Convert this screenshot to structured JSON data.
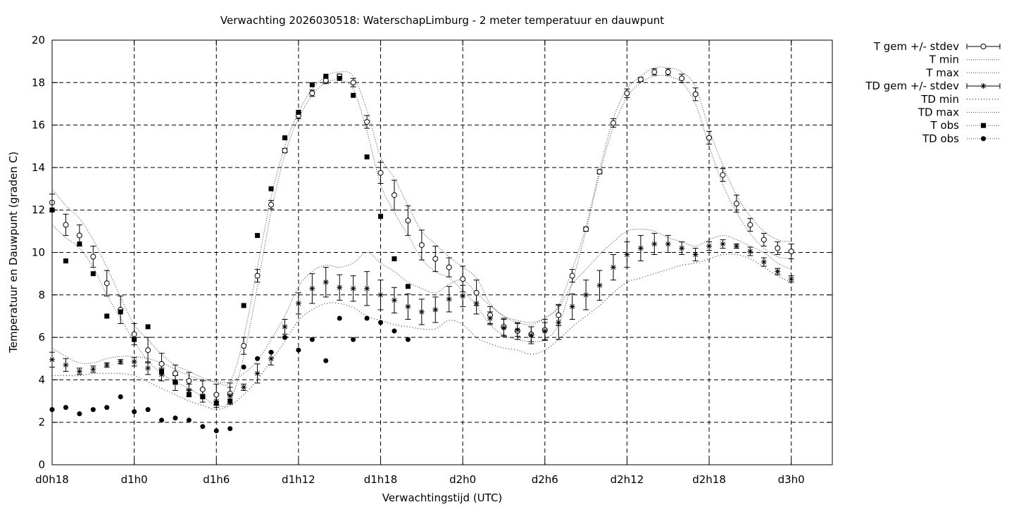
{
  "chart_data": {
    "type": "line",
    "title": "Verwachting 2026030518: WaterschapLimburg - 2 meter temperatuur en dauwpunt",
    "xlabel": "Verwachtingstijd (UTC)",
    "ylabel": "Temperatuur en Dauwpunt (graden C)",
    "xlim": [
      18,
      75
    ],
    "ylim": [
      0,
      20
    ],
    "y_ticks": [
      0,
      2,
      4,
      6,
      8,
      10,
      12,
      14,
      16,
      18,
      20
    ],
    "x_ticks": [
      {
        "x": 18,
        "label": "d0h18"
      },
      {
        "x": 24,
        "label": "d1h0"
      },
      {
        "x": 30,
        "label": "d1h6"
      },
      {
        "x": 36,
        "label": "d1h12"
      },
      {
        "x": 42,
        "label": "d1h18"
      },
      {
        "x": 48,
        "label": "d2h0"
      },
      {
        "x": 54,
        "label": "d2h6"
      },
      {
        "x": 60,
        "label": "d2h12"
      },
      {
        "x": 66,
        "label": "d2h18"
      },
      {
        "x": 72,
        "label": "d3h0"
      }
    ],
    "grid": true,
    "legend_position": "outside-right",
    "legend": [
      {
        "label": "T gem +/- stdev",
        "key": "t_mean"
      },
      {
        "label": "T min",
        "key": "t_min"
      },
      {
        "label": "T max",
        "key": "t_max"
      },
      {
        "label": "TD gem +/- stdev",
        "key": "td_mean"
      },
      {
        "label": "TD min",
        "key": "td_min"
      },
      {
        "label": "TD max",
        "key": "td_max"
      },
      {
        "label": "T obs",
        "key": "t_obs"
      },
      {
        "label": "TD obs",
        "key": "td_obs"
      }
    ],
    "x": [
      18,
      19,
      20,
      21,
      22,
      23,
      24,
      25,
      26,
      27,
      28,
      29,
      30,
      31,
      32,
      33,
      34,
      35,
      36,
      37,
      38,
      39,
      40,
      41,
      42,
      43,
      44,
      45,
      46,
      47,
      48,
      49,
      50,
      51,
      52,
      53,
      54,
      55,
      56,
      57,
      58,
      59,
      60,
      61,
      62,
      63,
      64,
      65,
      66,
      67,
      68,
      69,
      70,
      71,
      72
    ],
    "series": [
      {
        "name": "T gem +/- stdev",
        "key": "t_mean",
        "values": [
          12.35,
          11.3,
          10.8,
          9.8,
          8.55,
          7.3,
          6.15,
          5.4,
          4.75,
          4.3,
          3.95,
          3.55,
          3.3,
          3.35,
          5.6,
          8.9,
          12.25,
          14.8,
          16.45,
          17.5,
          18.1,
          18.3,
          18.0,
          16.15,
          13.75,
          12.7,
          11.5,
          10.35,
          9.7,
          9.3,
          8.75,
          8.1,
          7.05,
          6.5,
          6.3,
          6.15,
          6.35,
          7.05,
          8.9,
          11.1,
          13.8,
          16.1,
          17.5,
          18.15,
          18.5,
          18.5,
          18.2,
          17.45,
          15.4,
          13.65,
          12.3,
          11.3,
          10.6,
          10.2,
          10.05
        ],
        "stdev": [
          0.4,
          0.5,
          0.5,
          0.5,
          0.6,
          0.65,
          0.5,
          0.6,
          0.5,
          0.4,
          0.4,
          0.4,
          0.5,
          0.5,
          0.4,
          0.3,
          0.2,
          0.1,
          0.15,
          0.15,
          0.15,
          0.1,
          0.2,
          0.3,
          0.5,
          0.7,
          0.7,
          0.7,
          0.6,
          0.45,
          0.6,
          0.6,
          0.4,
          0.4,
          0.4,
          0.35,
          0.5,
          0.5,
          0.3,
          0.1,
          0.1,
          0.2,
          0.2,
          0.1,
          0.15,
          0.15,
          0.2,
          0.3,
          0.3,
          0.3,
          0.4,
          0.3,
          0.3,
          0.3,
          0.35
        ]
      },
      {
        "name": "T min",
        "key": "t_min",
        "values": [
          11.3,
          10.7,
          10.2,
          9.3,
          8.0,
          6.9,
          5.8,
          4.9,
          4.3,
          3.9,
          3.6,
          3.2,
          2.8,
          3.0,
          5.1,
          8.4,
          11.9,
          14.6,
          16.3,
          17.4,
          18.0,
          18.1,
          17.7,
          15.7,
          13.2,
          11.9,
          10.8,
          9.7,
          9.1,
          8.8,
          8.2,
          7.5,
          6.6,
          6.1,
          5.9,
          5.8,
          5.9,
          6.6,
          8.6,
          11.0,
          13.7,
          15.9,
          17.3,
          18.0,
          18.3,
          18.3,
          18.0,
          17.0,
          15.0,
          13.2,
          11.9,
          10.9,
          10.2,
          9.8,
          9.7
        ]
      },
      {
        "name": "T max",
        "key": "t_max",
        "values": [
          13.0,
          12.2,
          11.6,
          10.6,
          9.3,
          7.9,
          6.6,
          5.9,
          5.2,
          4.7,
          4.4,
          4.1,
          3.9,
          3.9,
          6.0,
          9.3,
          12.6,
          15.0,
          16.6,
          17.7,
          18.3,
          18.5,
          18.3,
          16.7,
          14.5,
          13.5,
          12.2,
          11.0,
          10.4,
          9.8,
          9.3,
          8.8,
          7.6,
          7.0,
          6.7,
          6.6,
          6.9,
          7.5,
          9.2,
          11.2,
          13.9,
          16.3,
          17.7,
          18.3,
          18.7,
          18.7,
          18.5,
          17.8,
          15.8,
          14.1,
          12.7,
          11.7,
          11.0,
          10.6,
          10.5
        ]
      },
      {
        "name": "TD gem +/- stdev",
        "key": "td_mean",
        "values": [
          4.95,
          4.7,
          4.4,
          4.5,
          4.7,
          4.85,
          4.85,
          4.55,
          4.25,
          3.85,
          3.5,
          3.25,
          3.0,
          3.25,
          3.65,
          4.3,
          5.0,
          6.5,
          7.6,
          8.3,
          8.6,
          8.35,
          8.3,
          8.3,
          8.0,
          7.75,
          7.45,
          7.2,
          7.3,
          7.8,
          7.95,
          7.6,
          6.9,
          6.45,
          6.35,
          6.1,
          6.3,
          6.7,
          7.45,
          8.0,
          8.45,
          9.3,
          9.9,
          10.2,
          10.4,
          10.4,
          10.2,
          9.9,
          10.3,
          10.4,
          10.3,
          10.05,
          9.55,
          9.1,
          8.75
        ]
      },
      {
        "name": "TD min",
        "key": "td_min",
        "values": [
          4.2,
          4.2,
          4.2,
          4.3,
          4.3,
          4.3,
          4.2,
          3.9,
          3.6,
          3.3,
          3.0,
          2.8,
          2.6,
          2.8,
          3.3,
          4.0,
          4.9,
          5.8,
          6.8,
          7.3,
          7.6,
          7.6,
          7.4,
          7.0,
          6.8,
          6.6,
          6.5,
          6.4,
          6.4,
          6.8,
          6.6,
          6.0,
          5.7,
          5.5,
          5.4,
          5.2,
          5.4,
          5.9,
          6.5,
          7.0,
          7.5,
          8.1,
          8.6,
          8.8,
          9.0,
          9.2,
          9.4,
          9.5,
          9.7,
          9.9,
          9.9,
          9.7,
          9.3,
          8.9,
          8.6
        ]
      },
      {
        "name": "TD max",
        "key": "td_max",
        "values": [
          5.5,
          5.1,
          4.8,
          4.8,
          5.0,
          5.1,
          5.1,
          5.0,
          4.8,
          4.5,
          4.2,
          4.0,
          3.9,
          3.9,
          4.3,
          4.9,
          5.9,
          7.0,
          8.4,
          9.1,
          9.4,
          9.3,
          9.5,
          10.0,
          9.5,
          9.1,
          8.6,
          8.3,
          8.1,
          8.5,
          8.7,
          8.1,
          7.5,
          7.0,
          6.8,
          6.7,
          6.9,
          7.4,
          8.5,
          9.2,
          9.9,
          10.5,
          11.0,
          11.1,
          11.0,
          10.7,
          10.5,
          10.3,
          10.6,
          10.8,
          10.6,
          10.3,
          10.0,
          9.5,
          9.2
        ]
      },
      {
        "name": "T obs",
        "key": "t_obs",
        "x": [
          18,
          19,
          20,
          21,
          22,
          23,
          24,
          25,
          26,
          27,
          28,
          29,
          30,
          31,
          32,
          33,
          34,
          35,
          36,
          37,
          38,
          39,
          40,
          41,
          42,
          43,
          44
        ],
        "values": [
          12.0,
          9.6,
          10.4,
          9.0,
          7.0,
          7.2,
          5.9,
          6.5,
          4.4,
          3.9,
          3.3,
          3.2,
          2.9,
          3.0,
          7.5,
          10.8,
          13.0,
          15.4,
          16.6,
          17.9,
          18.3,
          18.2,
          17.4,
          14.5,
          11.7,
          9.7,
          8.4
        ]
      },
      {
        "name": "TD obs",
        "key": "td_obs",
        "x": [
          18,
          19,
          20,
          21,
          22,
          23,
          24,
          25,
          26,
          27,
          28,
          29,
          30,
          31,
          32,
          33,
          34,
          35,
          36,
          37,
          38,
          39,
          40,
          41,
          42,
          43,
          44
        ],
        "values": [
          2.6,
          2.7,
          2.4,
          2.6,
          2.7,
          3.2,
          2.5,
          2.6,
          2.1,
          2.2,
          2.1,
          1.8,
          1.6,
          1.7,
          4.6,
          5.0,
          5.3,
          6.0,
          5.4,
          5.9,
          4.9,
          6.9,
          5.9,
          6.9,
          6.7,
          6.3,
          5.9
        ]
      }
    ]
  }
}
